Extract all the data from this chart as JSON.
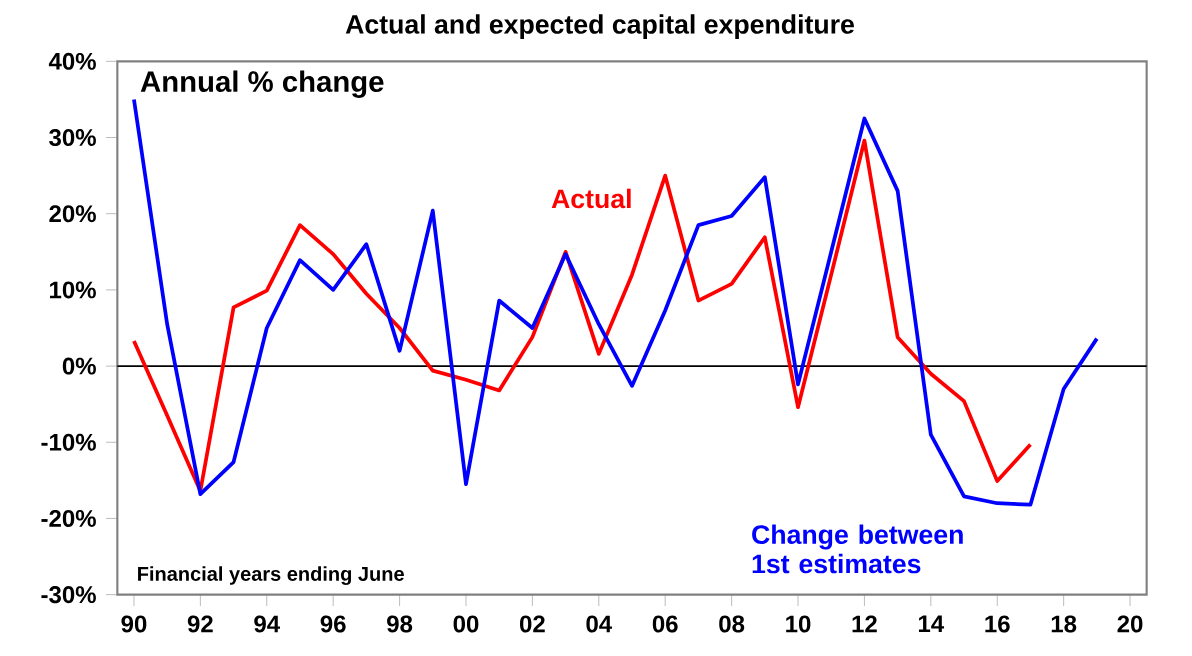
{
  "chart_data": {
    "type": "line",
    "title": "Actual and expected capital expenditure",
    "x": [
      1990,
      1991,
      1992,
      1993,
      1994,
      1995,
      1996,
      1997,
      1998,
      1999,
      2000,
      2001,
      2002,
      2003,
      2004,
      2005,
      2006,
      2007,
      2008,
      2009,
      2010,
      2011,
      2012,
      2013,
      2014,
      2015,
      2016,
      2017,
      2018,
      2019
    ],
    "series": [
      {
        "name": "Actual",
        "color": "#ff0000",
        "x": [
          1990,
          1991,
          1992,
          1993,
          1994,
          1995,
          1996,
          1997,
          1998,
          1999,
          2000,
          2001,
          2002,
          2003,
          2004,
          2005,
          2006,
          2007,
          2008,
          2009,
          2010,
          2011,
          2012,
          2013,
          2014,
          2015,
          2016,
          2017
        ],
        "values": [
          3.3,
          -6.5,
          -16.4,
          7.7,
          9.9,
          18.5,
          14.7,
          9.5,
          5,
          -0.6,
          -1.8,
          -3.2,
          3.8,
          15,
          1.6,
          12,
          25,
          8.6,
          10.8,
          16.9,
          -5.4,
          12,
          29.6,
          3.8,
          -1,
          -4.6,
          -15.1,
          -10.3
        ]
      },
      {
        "name": "Change between 1st estimates",
        "color": "#0000ff",
        "values": [
          35,
          5.5,
          -16.8,
          -12.6,
          5,
          13.9,
          10,
          16,
          2,
          20.4,
          -15.5,
          8.6,
          5,
          14.7,
          5.5,
          -2.6,
          7.3,
          18.5,
          19.7,
          24.8,
          -2.4,
          15,
          32.5,
          23,
          -9,
          -17.1,
          -18,
          -18.2,
          -3,
          3.6
        ]
      }
    ],
    "xlim": [
      1989.5,
      2020.5
    ],
    "xticks": [
      {
        "value": 1990,
        "label": "90"
      },
      {
        "value": 1992,
        "label": "92"
      },
      {
        "value": 1994,
        "label": "94"
      },
      {
        "value": 1996,
        "label": "96"
      },
      {
        "value": 1998,
        "label": "98"
      },
      {
        "value": 2000,
        "label": "00"
      },
      {
        "value": 2002,
        "label": "02"
      },
      {
        "value": 2004,
        "label": "04"
      },
      {
        "value": 2006,
        "label": "06"
      },
      {
        "value": 2008,
        "label": "08"
      },
      {
        "value": 2010,
        "label": "10"
      },
      {
        "value": 2012,
        "label": "12"
      },
      {
        "value": 2014,
        "label": "14"
      },
      {
        "value": 2016,
        "label": "16"
      },
      {
        "value": 2018,
        "label": "18"
      },
      {
        "value": 2020,
        "label": "20"
      }
    ],
    "ylim": [
      -30,
      40
    ],
    "yticks": [
      {
        "value": -30,
        "label": "-30%"
      },
      {
        "value": -20,
        "label": "-20%"
      },
      {
        "value": -10,
        "label": "-10%"
      },
      {
        "value": 0,
        "label": "0%"
      },
      {
        "value": 10,
        "label": "10%"
      },
      {
        "value": 20,
        "label": "20%"
      },
      {
        "value": 30,
        "label": "30%"
      },
      {
        "value": 40,
        "label": "40%"
      }
    ],
    "ref_lines": [
      {
        "axis": "y",
        "value": 0,
        "color": "#000000"
      }
    ],
    "annotations": [
      "Annual % change",
      "Financial years ending June"
    ],
    "grid": false,
    "marker": "none",
    "line_style": "solid"
  }
}
